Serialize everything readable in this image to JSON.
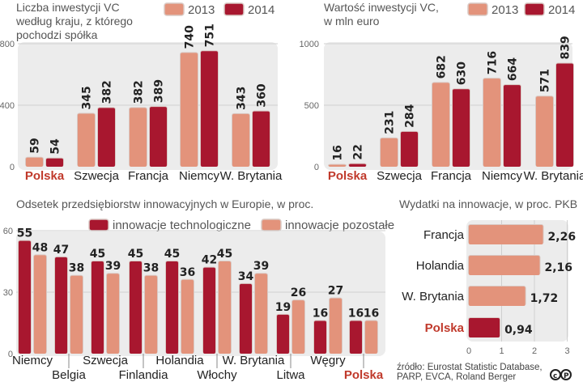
{
  "colors": {
    "light": "#e3937b",
    "dark": "#a8172f",
    "highlight": "#c0392b",
    "panel": "#ececec"
  },
  "chart_data": [
    {
      "type": "bar",
      "title": "Liczba inwestycji VC według kraju, z którego pochodzi spółka",
      "title_lines": [
        "Liczba inwestycji VC",
        "według kraju, z którego",
        "pochodzi spółka"
      ],
      "categories": [
        "Polska",
        "Szwecja",
        "Francja",
        "Niemcy",
        "W. Brytania"
      ],
      "highlight": "Polska",
      "series": [
        {
          "name": "2013",
          "color": "light",
          "values": [
            59,
            345,
            382,
            740,
            343
          ]
        },
        {
          "name": "2014",
          "color": "dark",
          "values": [
            54,
            382,
            389,
            751,
            360
          ]
        }
      ],
      "ylim": [
        0,
        800
      ],
      "yticks": [
        0,
        400,
        800
      ],
      "grid": true,
      "legend": "top-right"
    },
    {
      "type": "bar",
      "title": "Wartość inwestycji VC, w mln euro",
      "title_lines": [
        "Wartość inwestycji VC,",
        "w mln euro"
      ],
      "categories": [
        "Polska",
        "Szwecja",
        "Francja",
        "Niemcy",
        "W. Brytania"
      ],
      "highlight": "Polska",
      "series": [
        {
          "name": "2013",
          "color": "light",
          "values": [
            16,
            231,
            682,
            716,
            571
          ]
        },
        {
          "name": "2014",
          "color": "dark",
          "values": [
            22,
            284,
            630,
            664,
            839
          ]
        }
      ],
      "ylim": [
        0,
        1000
      ],
      "yticks": [
        0,
        500,
        1000
      ],
      "grid": true,
      "legend": "top-right"
    },
    {
      "type": "bar",
      "title": "Odsetek przedsiębiorstw innowacyjnych w Europie, w proc.",
      "categories": [
        "Niemcy",
        "Belgia",
        "Szwecja",
        "Finlandia",
        "Holandia",
        "Włochy",
        "W. Brytania",
        "Litwa",
        "Węgry",
        "Polska"
      ],
      "highlight": "Polska",
      "series": [
        {
          "name": "innowacje technologiczne",
          "color": "dark",
          "values": [
            55,
            47,
            45,
            45,
            45,
            42,
            34,
            19,
            16,
            16
          ]
        },
        {
          "name": "innowacje pozostałe",
          "color": "light",
          "values": [
            48,
            38,
            39,
            38,
            36,
            45,
            39,
            26,
            27,
            16
          ]
        }
      ],
      "ylim": [
        0,
        60
      ],
      "yticks": [
        0,
        30,
        60
      ],
      "grid": true,
      "legend": "top"
    },
    {
      "type": "bar",
      "orientation": "horizontal",
      "title": "Wydatki na innowacje, w proc. PKB",
      "categories": [
        "Francja",
        "Holandia",
        "W. Brytania",
        "Polska"
      ],
      "highlight": "Polska",
      "values": [
        2.26,
        2.16,
        1.72,
        0.94
      ],
      "value_labels": [
        "2,26",
        "2,16",
        "1,72",
        "0,94"
      ],
      "xlim": [
        0,
        3
      ],
      "xticks": [
        0,
        1,
        2,
        3
      ],
      "grid": true
    }
  ],
  "source": {
    "lines": [
      "źródło: Eurostat Statistic Database,",
      "PARP, EVCA, Roland Berger"
    ],
    "logo": "CP"
  }
}
